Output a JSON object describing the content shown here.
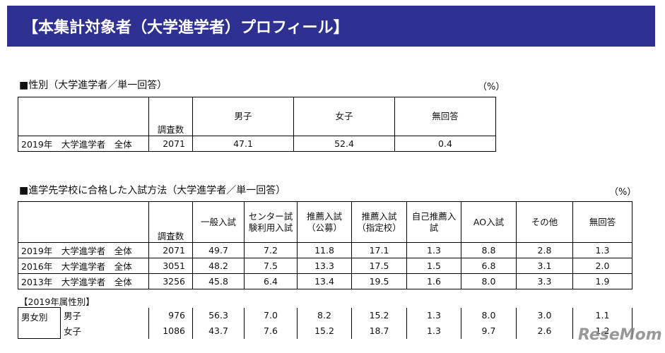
{
  "header": {
    "title": "【本集計対象者（大学進学者）プロフィール】"
  },
  "gender": {
    "title": "■性別（大学進学者／単一回答）",
    "unit": "（%）",
    "columns": [
      "調査数",
      "男子",
      "女子",
      "無回答"
    ],
    "rows": [
      [
        "2019年　大学進学者　全体",
        "2071",
        "47.1",
        "52.4",
        "0.4"
      ]
    ]
  },
  "method": {
    "title": "■進学先学校に合格した入試方法（大学進学者／単一回答）",
    "unit": "（%）",
    "columns": [
      "調査数",
      "一般入試",
      "センター試験利用入試",
      "推薦入試（公募）",
      "推薦入試（指定校）",
      "自己推薦入試",
      "AO入試",
      "その他",
      "無回答"
    ],
    "rows": [
      [
        "2019年　大学進学者　全体",
        "2071",
        "49.7",
        "7.2",
        "11.8",
        "17.1",
        "1.3",
        "8.8",
        "2.8",
        "1.3"
      ],
      [
        "2016年　大学進学者　全体",
        "3051",
        "48.2",
        "7.5",
        "13.3",
        "17.5",
        "1.5",
        "6.8",
        "3.1",
        "2.0"
      ],
      [
        "2013年　大学進学者　全体",
        "3256",
        "45.8",
        "6.4",
        "13.4",
        "19.5",
        "1.6",
        "8.0",
        "3.3",
        "1.9"
      ]
    ],
    "subsection": "【2019年属性別】",
    "group_label": "男女別",
    "group_rows": [
      [
        "男子",
        "976",
        "56.3",
        "7.0",
        "8.2",
        "15.2",
        "1.3",
        "8.0",
        "3.0",
        "1.1"
      ],
      [
        "女子",
        "1086",
        "43.7",
        "7.6",
        "15.2",
        "18.7",
        "1.3",
        "9.7",
        "2.6",
        "1.2"
      ]
    ]
  },
  "watermark": "ReseMom"
}
